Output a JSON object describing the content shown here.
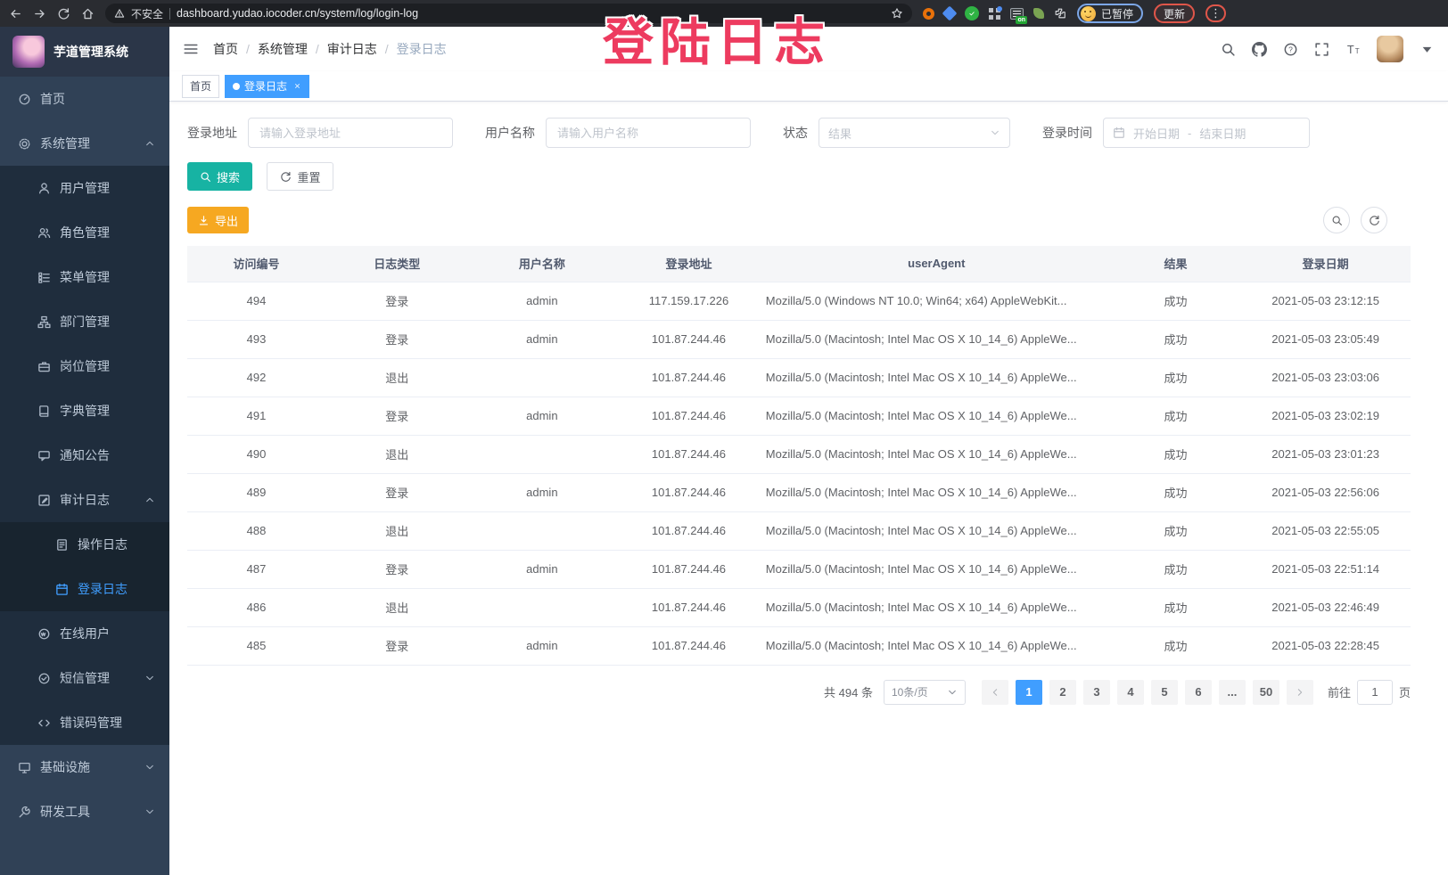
{
  "annotation": {
    "text": "登陆日志"
  },
  "colors": {
    "primary_blue": "#409eff",
    "search_teal": "#17b3a3",
    "export_orange": "#f6a821",
    "annotation_pink": "#ed3b5f",
    "sidebar_bg": "#304156",
    "submenu_bg": "#1f2d3d"
  },
  "browser": {
    "security_label": "不安全",
    "url": "dashboard.yudao.iocoder.cn/system/log/login-log",
    "paused_badge": "已暂停",
    "update_button": "更新",
    "extension_badge": "on"
  },
  "sidebar": {
    "app_title": "芋道管理系统",
    "items": [
      {
        "label": "首页",
        "icon": "dashboard",
        "level": 1
      },
      {
        "label": "系统管理",
        "icon": "gear",
        "level": 1,
        "arrow": "up"
      },
      {
        "label": "用户管理",
        "icon": "user",
        "level": 2
      },
      {
        "label": "角色管理",
        "icon": "role",
        "level": 2
      },
      {
        "label": "菜单管理",
        "icon": "menu",
        "level": 2
      },
      {
        "label": "部门管理",
        "icon": "tree",
        "level": 2
      },
      {
        "label": "岗位管理",
        "icon": "post",
        "level": 2
      },
      {
        "label": "字典管理",
        "icon": "dict",
        "level": 2
      },
      {
        "label": "通知公告",
        "icon": "message",
        "level": 2
      },
      {
        "label": "审计日志",
        "icon": "log",
        "level": 2,
        "arrow": "up"
      },
      {
        "label": "操作日志",
        "icon": "form",
        "level": 3
      },
      {
        "label": "登录日志",
        "icon": "logininfor",
        "level": 3,
        "active": true
      },
      {
        "label": "在线用户",
        "icon": "online",
        "level": 2
      },
      {
        "label": "短信管理",
        "icon": "sms",
        "level": 2,
        "arrow": "down"
      },
      {
        "label": "错误码管理",
        "icon": "code",
        "level": 2
      },
      {
        "label": "基础设施",
        "icon": "monitor",
        "level": 1,
        "arrow": "down"
      },
      {
        "label": "研发工具",
        "icon": "tool",
        "level": 1,
        "arrow": "down"
      }
    ]
  },
  "navbar": {
    "breadcrumb": [
      "首页",
      "系统管理",
      "审计日志",
      "登录日志"
    ]
  },
  "tags": [
    {
      "label": "首页",
      "active": false
    },
    {
      "label": "登录日志",
      "active": true
    }
  ],
  "filters": {
    "address_label": "登录地址",
    "address_placeholder": "请输入登录地址",
    "username_label": "用户名称",
    "username_placeholder": "请输入用户名称",
    "status_label": "状态",
    "status_placeholder": "结果",
    "time_label": "登录时间",
    "date_start": "开始日期",
    "date_sep": "-",
    "date_end": "结束日期",
    "search_label": "搜索",
    "reset_label": "重置"
  },
  "toolbar": {
    "export_label": "导出"
  },
  "table": {
    "columns": [
      "访问编号",
      "日志类型",
      "用户名称",
      "登录地址",
      "userAgent",
      "结果",
      "登录日期"
    ],
    "rows": [
      {
        "id": "494",
        "type": "登录",
        "user": "admin",
        "ip": "117.159.17.226",
        "ua": "Mozilla/5.0 (Windows NT 10.0; Win64; x64) AppleWebKit...",
        "result": "成功",
        "date": "2021-05-03 23:12:15"
      },
      {
        "id": "493",
        "type": "登录",
        "user": "admin",
        "ip": "101.87.244.46",
        "ua": "Mozilla/5.0 (Macintosh; Intel Mac OS X 10_14_6) AppleWe...",
        "result": "成功",
        "date": "2021-05-03 23:05:49"
      },
      {
        "id": "492",
        "type": "退出",
        "user": "",
        "ip": "101.87.244.46",
        "ua": "Mozilla/5.0 (Macintosh; Intel Mac OS X 10_14_6) AppleWe...",
        "result": "成功",
        "date": "2021-05-03 23:03:06"
      },
      {
        "id": "491",
        "type": "登录",
        "user": "admin",
        "ip": "101.87.244.46",
        "ua": "Mozilla/5.0 (Macintosh; Intel Mac OS X 10_14_6) AppleWe...",
        "result": "成功",
        "date": "2021-05-03 23:02:19"
      },
      {
        "id": "490",
        "type": "退出",
        "user": "",
        "ip": "101.87.244.46",
        "ua": "Mozilla/5.0 (Macintosh; Intel Mac OS X 10_14_6) AppleWe...",
        "result": "成功",
        "date": "2021-05-03 23:01:23"
      },
      {
        "id": "489",
        "type": "登录",
        "user": "admin",
        "ip": "101.87.244.46",
        "ua": "Mozilla/5.0 (Macintosh; Intel Mac OS X 10_14_6) AppleWe...",
        "result": "成功",
        "date": "2021-05-03 22:56:06"
      },
      {
        "id": "488",
        "type": "退出",
        "user": "",
        "ip": "101.87.244.46",
        "ua": "Mozilla/5.0 (Macintosh; Intel Mac OS X 10_14_6) AppleWe...",
        "result": "成功",
        "date": "2021-05-03 22:55:05"
      },
      {
        "id": "487",
        "type": "登录",
        "user": "admin",
        "ip": "101.87.244.46",
        "ua": "Mozilla/5.0 (Macintosh; Intel Mac OS X 10_14_6) AppleWe...",
        "result": "成功",
        "date": "2021-05-03 22:51:14"
      },
      {
        "id": "486",
        "type": "退出",
        "user": "",
        "ip": "101.87.244.46",
        "ua": "Mozilla/5.0 (Macintosh; Intel Mac OS X 10_14_6) AppleWe...",
        "result": "成功",
        "date": "2021-05-03 22:46:49"
      },
      {
        "id": "485",
        "type": "登录",
        "user": "admin",
        "ip": "101.87.244.46",
        "ua": "Mozilla/5.0 (Macintosh; Intel Mac OS X 10_14_6) AppleWe...",
        "result": "成功",
        "date": "2021-05-03 22:28:45"
      }
    ]
  },
  "pagination": {
    "total": "共 494 条",
    "page_size": "10条/页",
    "pages": [
      "1",
      "2",
      "3",
      "4",
      "5",
      "6",
      "...",
      "50"
    ],
    "active": "1",
    "goto_label": "前往",
    "goto_value": "1",
    "goto_unit": "页"
  }
}
